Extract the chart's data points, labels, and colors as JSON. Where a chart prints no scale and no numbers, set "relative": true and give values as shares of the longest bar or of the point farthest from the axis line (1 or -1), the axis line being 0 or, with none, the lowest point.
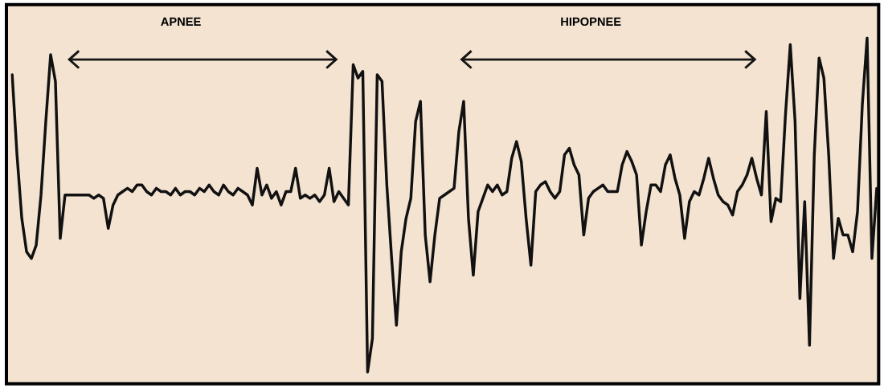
{
  "chart_data": {
    "type": "line",
    "relative": true,
    "annotations": [
      "APNEE",
      "HIPOPNEE"
    ],
    "categories": [
      null,
      null,
      null,
      null,
      null,
      null,
      null,
      null,
      null,
      null,
      null,
      null,
      null,
      null,
      null,
      null,
      null,
      null,
      null,
      null,
      null,
      null,
      null,
      null,
      null,
      null,
      null,
      null,
      null,
      null,
      null,
      null,
      null,
      null,
      null,
      null,
      null,
      null,
      null,
      null,
      null,
      null,
      null,
      null,
      null,
      null,
      null,
      null,
      null,
      null,
      null,
      null,
      null,
      null,
      null,
      null,
      null,
      null,
      null,
      null,
      null,
      null,
      null,
      null,
      null,
      null,
      null,
      null,
      null,
      null,
      null,
      null,
      null,
      null,
      null,
      null,
      null,
      null,
      null,
      null,
      null,
      null,
      null,
      null,
      null,
      null,
      null,
      null,
      null,
      null,
      null,
      null,
      null,
      null,
      null,
      null,
      null,
      null,
      null,
      null,
      null,
      null,
      null,
      null,
      null,
      null,
      null,
      null,
      null,
      null,
      null,
      null,
      null,
      null,
      null,
      null,
      null,
      null,
      null,
      null,
      null,
      null,
      null,
      null,
      null,
      null,
      null,
      null,
      null,
      null,
      null,
      null,
      null,
      null,
      null,
      null,
      null,
      null,
      null,
      null,
      null,
      null,
      null,
      null,
      null,
      null,
      null,
      null,
      null,
      null,
      null,
      null,
      null,
      null,
      null,
      null,
      null,
      null,
      null,
      null,
      null,
      null,
      null,
      null,
      null,
      null,
      null,
      null,
      null,
      null,
      null,
      null,
      null,
      null,
      null,
      null,
      null,
      null,
      null,
      null,
      null
    ],
    "series": [
      {
        "color": "#111111",
        "values": [
          0.89,
          0.65,
          0.46,
          0.36,
          0.34,
          0.38,
          0.53,
          0.75,
          0.95,
          0.87,
          0.4,
          0.53,
          0.53,
          0.53,
          0.53,
          0.53,
          0.53,
          0.52,
          0.53,
          0.52,
          0.43,
          0.5,
          0.53,
          0.54,
          0.55,
          0.54,
          0.56,
          0.56,
          0.54,
          0.53,
          0.55,
          0.54,
          0.54,
          0.53,
          0.55,
          0.53,
          0.54,
          0.54,
          0.53,
          0.55,
          0.54,
          0.56,
          0.54,
          0.53,
          0.56,
          0.54,
          0.53,
          0.55,
          0.54,
          0.53,
          0.5,
          0.61,
          0.53,
          0.56,
          0.52,
          0.54,
          0.5,
          0.54,
          0.54,
          0.61,
          0.52,
          0.53,
          0.52,
          0.53,
          0.51,
          0.53,
          0.61,
          0.51,
          0.54,
          0.52,
          0.5,
          0.92,
          0.88,
          0.9,
          0,
          0.1,
          0.89,
          0.87,
          0.56,
          0.34,
          0.14,
          0.36,
          0.46,
          0.52,
          0.75,
          0.81,
          0.41,
          0.27,
          0.41,
          0.52,
          0.53,
          0.54,
          0.55,
          0.72,
          0.81,
          0.46,
          0.29,
          0.48,
          0.52,
          0.56,
          0.54,
          0.56,
          0.53,
          0.54,
          0.64,
          0.69,
          0.63,
          0.46,
          0.32,
          0.54,
          0.56,
          0.57,
          0.54,
          0.52,
          0.54,
          0.65,
          0.67,
          0.62,
          0.59,
          0.41,
          0.52,
          0.54,
          0.55,
          0.56,
          0.54,
          0.54,
          0.54,
          0.62,
          0.66,
          0.63,
          0.59,
          0.38,
          0.48,
          0.56,
          0.56,
          0.54,
          0.62,
          0.65,
          0.58,
          0.53,
          0.4,
          0.51,
          0.54,
          0.53,
          0.58,
          0.64,
          0.58,
          0.53,
          0.51,
          0.5,
          0.47,
          0.54,
          0.56,
          0.59,
          0.64,
          0.58,
          0.53,
          0.78,
          0.45,
          0.52,
          0.51,
          0.77,
          0.98,
          0.75,
          0.22,
          0.51,
          0.08,
          0.65,
          0.94,
          0.88,
          0.65,
          0.34,
          0.46,
          0.41,
          0.41,
          0.36,
          0.48,
          0.8,
          1,
          0.34,
          0.55
        ]
      }
    ]
  }
}
